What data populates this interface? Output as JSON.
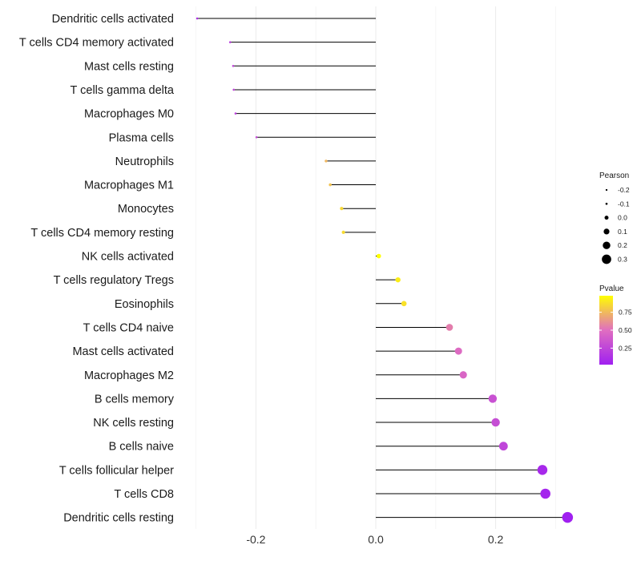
{
  "chart_data": {
    "type": "lollipop",
    "xlabel": "",
    "ylabel": "",
    "xlim": [
      -0.3,
      0.32
    ],
    "x_ticks": [
      -0.2,
      0.0,
      0.2
    ],
    "x_tick_labels": [
      "-0.2",
      "0.0",
      "0.2"
    ],
    "grid": true,
    "categories": [
      "Dendritic cells activated",
      "T cells CD4 memory activated",
      "Mast cells resting",
      "T cells gamma delta",
      "Macrophages M0",
      "Plasma cells",
      "Neutrophils",
      "Macrophages M1",
      "Monocytes",
      "T cells CD4 memory resting",
      "NK cells activated",
      "T cells regulatory  Tregs ",
      "Eosinophils",
      "T cells CD4 naive",
      "Mast cells activated",
      "Macrophages M2",
      "B cells memory",
      "NK cells resting",
      "B cells naive",
      "T cells follicular helper",
      "T cells CD8",
      "Dendritic cells resting"
    ],
    "values": [
      -0.298,
      -0.243,
      -0.238,
      -0.237,
      -0.234,
      -0.199,
      -0.083,
      -0.076,
      -0.057,
      -0.054,
      0.005,
      0.037,
      0.047,
      0.123,
      0.138,
      0.146,
      0.195,
      0.2,
      0.213,
      0.278,
      0.283,
      0.32
    ],
    "pvalues": [
      0.12,
      0.2,
      0.25,
      0.25,
      0.22,
      0.28,
      0.74,
      0.78,
      0.85,
      0.86,
      0.98,
      0.92,
      0.88,
      0.55,
      0.48,
      0.45,
      0.32,
      0.3,
      0.25,
      0.07,
      0.05,
      0.02
    ],
    "size_legend": {
      "title": "Pearson",
      "labels": [
        "-0.2",
        "-0.1",
        "0.0",
        "0.1",
        "0.2",
        "0.3"
      ],
      "values": [
        -0.2,
        -0.1,
        0.0,
        0.1,
        0.2,
        0.3
      ]
    },
    "color_legend": {
      "title": "Pvalue",
      "labels": [
        "0.75",
        "0.50",
        "0.25"
      ],
      "values": [
        0.75,
        0.5,
        0.25
      ],
      "range": [
        0.02,
        0.98
      ],
      "colors": [
        "#a020f0",
        "#e06ec0",
        "#ffff00"
      ]
    }
  }
}
